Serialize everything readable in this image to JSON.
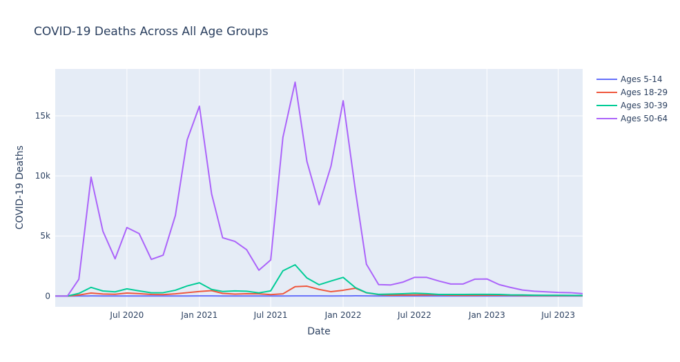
{
  "chart_data": {
    "type": "line",
    "title": "COVID-19 Deaths Across All Age Groups",
    "xlabel": "Date",
    "ylabel": "COVID-19 Deaths",
    "x": [
      "2020-01",
      "2020-02",
      "2020-03",
      "2020-04",
      "2020-05",
      "2020-06",
      "2020-07",
      "2020-08",
      "2020-09",
      "2020-10",
      "2020-11",
      "2020-12",
      "2021-01",
      "2021-02",
      "2021-03",
      "2021-04",
      "2021-05",
      "2021-06",
      "2021-07",
      "2021-08",
      "2021-09",
      "2021-10",
      "2021-11",
      "2021-12",
      "2022-01",
      "2022-02",
      "2022-03",
      "2022-04",
      "2022-05",
      "2022-06",
      "2022-07",
      "2022-08",
      "2022-09",
      "2022-10",
      "2022-11",
      "2022-12",
      "2023-01",
      "2023-02",
      "2023-03",
      "2023-04",
      "2023-05",
      "2023-06",
      "2023-07",
      "2023-08",
      "2023-09"
    ],
    "xlim": [
      "2020-01-01",
      "2023-09-01"
    ],
    "ylim": [
      -900,
      18900
    ],
    "x_ticks": [
      {
        "date": "2020-07-01",
        "label": "Jul 2020"
      },
      {
        "date": "2021-01-01",
        "label": "Jan 2021"
      },
      {
        "date": "2021-07-01",
        "label": "Jul 2021"
      },
      {
        "date": "2022-01-01",
        "label": "Jan 2022"
      },
      {
        "date": "2022-07-01",
        "label": "Jul 2022"
      },
      {
        "date": "2023-01-01",
        "label": "Jan 2023"
      },
      {
        "date": "2023-07-01",
        "label": "Jul 2023"
      }
    ],
    "y_ticks": [
      {
        "value": 0,
        "label": "0"
      },
      {
        "value": 5000,
        "label": "5k"
      },
      {
        "value": 10000,
        "label": "10k"
      },
      {
        "value": 15000,
        "label": "15k"
      }
    ],
    "grid": true,
    "legend_position": "top-right",
    "series": [
      {
        "name": "Ages 5-14",
        "color": "#636efa",
        "values": [
          0,
          0,
          3,
          8,
          5,
          4,
          5,
          5,
          4,
          4,
          5,
          6,
          8,
          8,
          6,
          4,
          3,
          3,
          4,
          6,
          10,
          10,
          8,
          7,
          12,
          15,
          10,
          6,
          4,
          3,
          3,
          4,
          4,
          3,
          3,
          3,
          3,
          3,
          3,
          2,
          2,
          2,
          2,
          2,
          2
        ]
      },
      {
        "name": "Ages 18-29",
        "color": "#EF553B",
        "values": [
          0,
          0,
          80,
          250,
          170,
          150,
          250,
          200,
          130,
          120,
          180,
          280,
          380,
          450,
          220,
          160,
          190,
          180,
          120,
          180,
          780,
          820,
          550,
          360,
          480,
          650,
          270,
          120,
          70,
          80,
          90,
          100,
          100,
          70,
          60,
          60,
          70,
          70,
          60,
          45,
          40,
          35,
          35,
          30,
          25
        ]
      },
      {
        "name": "Ages 30-39",
        "color": "#00cc96",
        "values": [
          0,
          0,
          220,
          720,
          420,
          350,
          600,
          430,
          270,
          280,
          480,
          840,
          1100,
          550,
          380,
          430,
          400,
          260,
          430,
          2100,
          2600,
          1500,
          940,
          1250,
          1550,
          700,
          280,
          140,
          160,
          190,
          230,
          200,
          130,
          130,
          130,
          140,
          140,
          130,
          100,
          90,
          70,
          60,
          60,
          55,
          50
        ]
      },
      {
        "name": "Ages 50-64",
        "color": "#ab63fa",
        "values": [
          0,
          0,
          1400,
          9900,
          5400,
          3100,
          5700,
          5200,
          3050,
          3400,
          6700,
          13000,
          15800,
          8500,
          4850,
          4550,
          3850,
          2150,
          3000,
          13200,
          17800,
          11200,
          7600,
          10800,
          16250,
          8800,
          2650,
          950,
          920,
          1150,
          1550,
          1550,
          1250,
          1000,
          1000,
          1400,
          1420,
          950,
          720,
          500,
          400,
          350,
          300,
          280,
          200
        ]
      }
    ]
  }
}
